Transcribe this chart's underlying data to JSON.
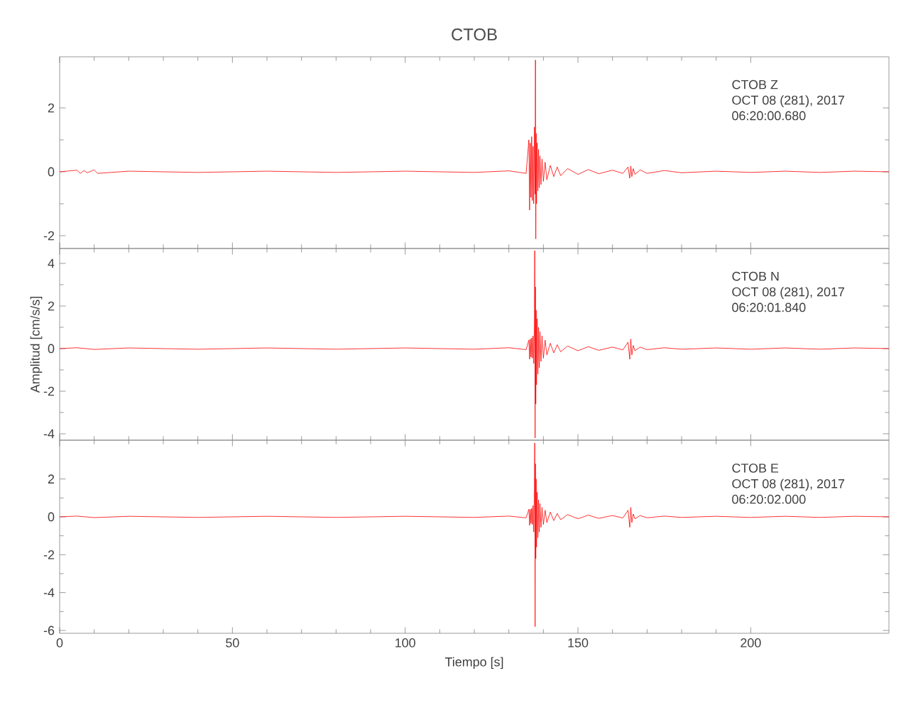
{
  "chart_data": [
    {
      "type": "line",
      "title": "CTOB",
      "color": "#ff0000",
      "marker": "none",
      "tick_labels": "y",
      "xlim": [
        0,
        240
      ],
      "xticks": [
        0,
        50,
        100,
        150,
        200
      ],
      "ylim": [
        -2.4,
        3.6
      ],
      "yticks": [
        -2,
        0,
        2
      ],
      "annotations": [
        "CTOB   Z",
        "OCT 08 (281), 2017",
        "06:20:00.680"
      ],
      "x": [
        0,
        5,
        6,
        7,
        8,
        10,
        11,
        20,
        40,
        60,
        80,
        100,
        120,
        130,
        135,
        135.8,
        136.0,
        136.2,
        136.4,
        136.6,
        136.8,
        137.0,
        137.2,
        137.4,
        137.6,
        137.7,
        137.8,
        137.9,
        138.0,
        138.2,
        138.4,
        138.6,
        138.8,
        139.0,
        139.3,
        139.6,
        140,
        140.5,
        141,
        142,
        143,
        144,
        145,
        147,
        150,
        153,
        156,
        160,
        163,
        164.5,
        165,
        165.3,
        165.6,
        166,
        166.5,
        168,
        170,
        175,
        180,
        190,
        200,
        210,
        220,
        230,
        240
      ],
      "values": [
        0,
        0.05,
        -0.05,
        0.04,
        -0.03,
        0.06,
        -0.05,
        0.02,
        -0.02,
        0.02,
        -0.02,
        0.02,
        -0.02,
        0.03,
        -0.05,
        1.0,
        -1.2,
        0.9,
        -0.8,
        1.1,
        -0.9,
        0.8,
        -1.0,
        1.4,
        -0.7,
        3.5,
        -2.1,
        1.2,
        -1.0,
        0.9,
        -0.6,
        0.7,
        -0.5,
        0.5,
        -0.4,
        0.4,
        -0.3,
        0.3,
        -0.25,
        0.2,
        -0.15,
        0.15,
        -0.12,
        0.1,
        -0.08,
        0.07,
        -0.06,
        0.05,
        -0.05,
        0.15,
        -0.2,
        0.18,
        -0.15,
        0.1,
        -0.08,
        0.06,
        -0.05,
        0.04,
        -0.03,
        0.02,
        -0.02,
        0.02,
        -0.02,
        0.02,
        0
      ]
    },
    {
      "type": "line",
      "ylabel": "Amplitud [cm/s/s]",
      "color": "#ff0000",
      "marker": "none",
      "tick_labels": "y",
      "xlim": [
        0,
        240
      ],
      "xticks": [
        0,
        50,
        100,
        150,
        200
      ],
      "ylim": [
        -4.3,
        4.7
      ],
      "yticks": [
        -4,
        -2,
        0,
        2,
        4
      ],
      "annotations": [
        "CTOB   N",
        "OCT 08 (281), 2017",
        "06:20:01.840"
      ],
      "x": [
        0,
        5,
        10,
        20,
        40,
        60,
        80,
        100,
        120,
        130,
        135,
        135.8,
        136.0,
        136.2,
        136.4,
        136.6,
        136.8,
        137.0,
        137.2,
        137.4,
        137.5,
        137.6,
        137.7,
        137.8,
        137.9,
        138.0,
        138.2,
        138.4,
        138.6,
        138.8,
        139.0,
        139.3,
        139.6,
        140,
        140.5,
        141,
        142,
        143,
        144,
        145,
        147,
        150,
        153,
        156,
        160,
        163,
        164.5,
        165,
        165.3,
        165.6,
        166,
        166.5,
        168,
        170,
        175,
        180,
        190,
        200,
        210,
        220,
        230,
        240
      ],
      "values": [
        0,
        0.04,
        -0.04,
        0.03,
        -0.03,
        0.03,
        -0.03,
        0.03,
        -0.03,
        0.04,
        -0.05,
        0.4,
        -0.5,
        0.45,
        -0.4,
        0.5,
        -0.45,
        0.6,
        -0.7,
        1.2,
        4.6,
        -4.2,
        2.9,
        -2.6,
        1.8,
        -1.7,
        1.4,
        -1.2,
        1.0,
        -0.9,
        0.8,
        -0.6,
        0.6,
        -0.45,
        0.4,
        -0.3,
        0.25,
        -0.2,
        0.18,
        -0.15,
        0.12,
        -0.1,
        0.09,
        -0.08,
        0.07,
        -0.06,
        0.3,
        -0.5,
        0.45,
        -0.3,
        0.15,
        -0.1,
        0.07,
        -0.05,
        0.04,
        -0.03,
        0.03,
        -0.03,
        0.03,
        -0.03,
        0.03,
        0
      ]
    },
    {
      "type": "line",
      "xlabel": "Tiempo [s]",
      "color": "#ff0000",
      "marker": "none",
      "xlim": [
        0,
        240
      ],
      "xticks": [
        0,
        50,
        100,
        150,
        200
      ],
      "ylim": [
        -6.15,
        4.05
      ],
      "yticks": [
        -6,
        -4,
        -2,
        0,
        2
      ],
      "annotations": [
        "CTOB   E",
        "OCT 08 (281), 2017",
        "06:20:02.000"
      ],
      "x": [
        0,
        5,
        10,
        20,
        40,
        60,
        80,
        100,
        120,
        130,
        135,
        135.8,
        136.0,
        136.2,
        136.4,
        136.6,
        136.8,
        137.0,
        137.2,
        137.4,
        137.5,
        137.6,
        137.7,
        137.8,
        137.9,
        138.0,
        138.2,
        138.4,
        138.6,
        138.8,
        139.0,
        139.3,
        139.6,
        140,
        140.5,
        141,
        142,
        143,
        144,
        145,
        147,
        150,
        153,
        156,
        160,
        163,
        164.5,
        165,
        165.3,
        165.6,
        166,
        166.5,
        168,
        170,
        175,
        180,
        190,
        200,
        210,
        220,
        230,
        240
      ],
      "values": [
        0,
        0.04,
        -0.04,
        0.03,
        -0.03,
        0.03,
        -0.03,
        0.03,
        -0.03,
        0.04,
        -0.05,
        0.4,
        -0.45,
        0.4,
        -0.35,
        0.45,
        -0.4,
        0.6,
        -0.8,
        1.5,
        3.9,
        -5.8,
        2.8,
        -2.2,
        2.0,
        -1.6,
        1.3,
        -1.1,
        0.9,
        -0.8,
        0.7,
        -0.55,
        0.5,
        -0.4,
        0.35,
        -0.3,
        0.25,
        -0.2,
        0.18,
        -0.15,
        0.12,
        -0.1,
        0.09,
        -0.08,
        0.07,
        -0.06,
        0.35,
        -0.55,
        0.5,
        -0.3,
        0.15,
        -0.1,
        0.07,
        -0.05,
        0.04,
        -0.03,
        0.03,
        -0.03,
        0.03,
        -0.03,
        0.03,
        0
      ]
    }
  ]
}
